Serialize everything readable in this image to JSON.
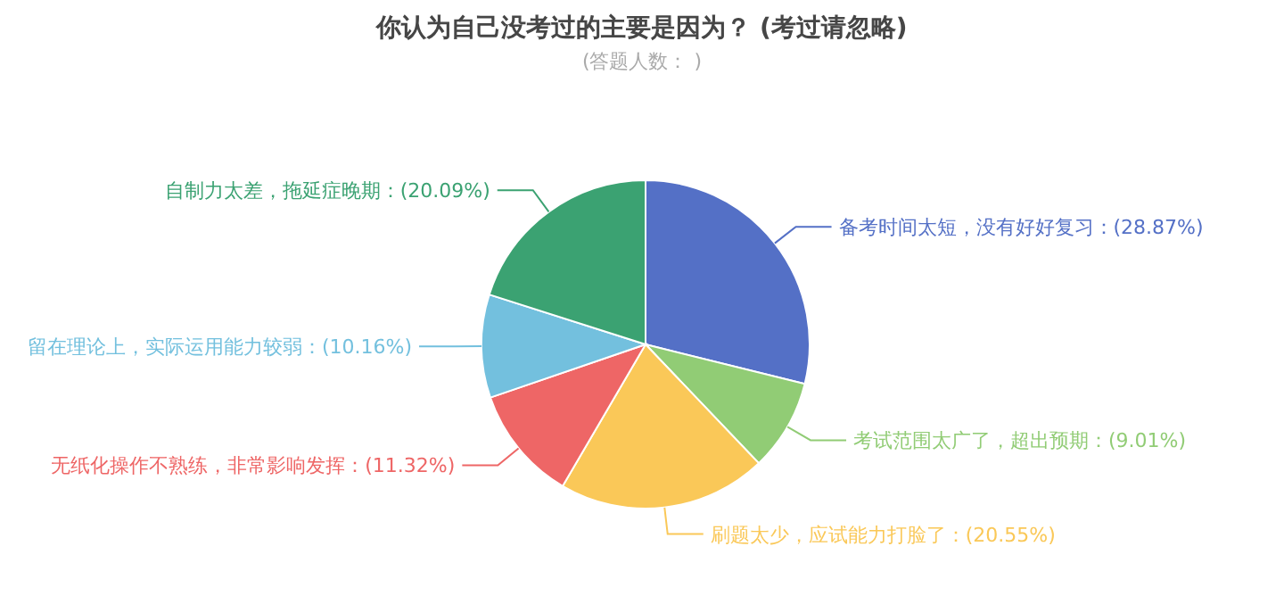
{
  "chart_data": {
    "type": "pie",
    "title": "你认为自己没考过的主要是因为？  (考过请忽略)",
    "subtitle": "(答题人数：      )",
    "categories": [
      "备考时间太短，没有好好复习",
      "考试范围太广了，超出预期",
      "刷题太少，应试能力打脸了",
      "无纸化操作不熟练，非常影响发挥",
      "留在理论上，实际运用能力较弱",
      "自制力太差，拖延症晚期"
    ],
    "values": [
      28.87,
      9.01,
      20.55,
      11.32,
      10.16,
      20.09
    ],
    "value_labels": [
      "(28.87%)",
      "(9.01%)",
      "(20.55%)",
      "(11.32%)",
      "(10.16%)",
      "(20.09%)"
    ],
    "colors": [
      "#5470c6",
      "#91cc75",
      "#fac858",
      "#ee6666",
      "#73c0de",
      "#3ba272"
    ]
  }
}
